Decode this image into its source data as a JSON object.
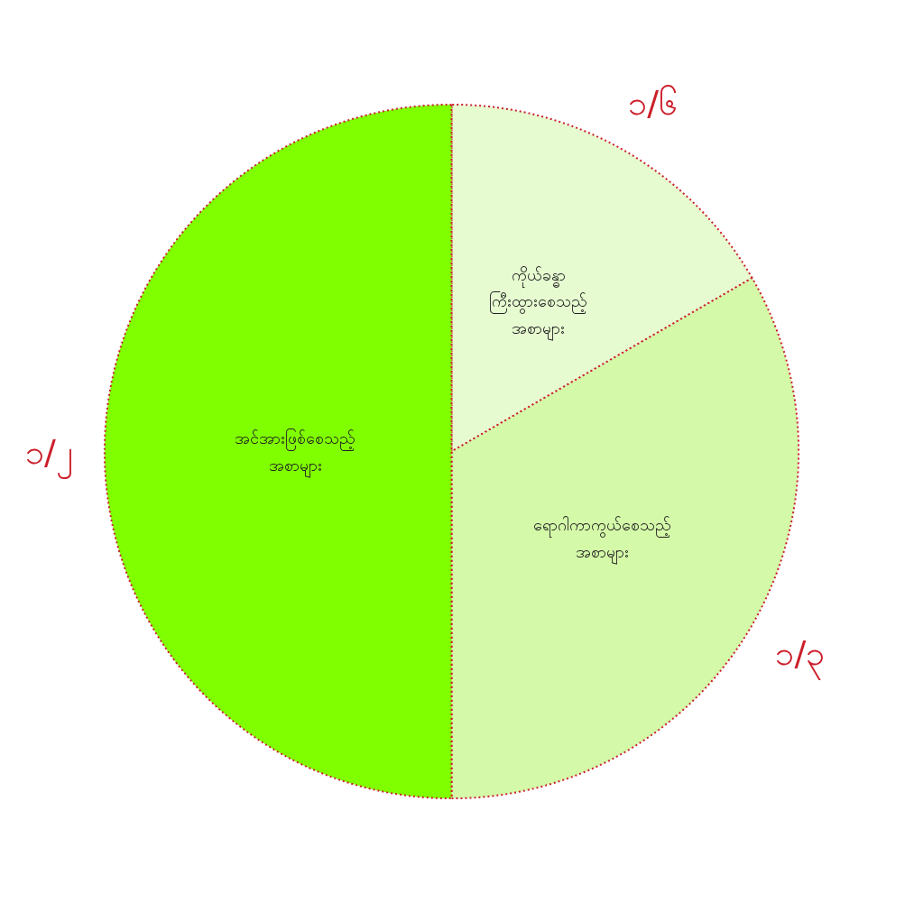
{
  "chart_data": {
    "type": "pie",
    "categories": [
      "ကိုယ်ခန္ဓာ\nကြီးထွားစေသည့်\nအစာများ",
      "ရောဂါကာကွယ်စေသည့်\nအစာများ",
      "အင်အားဖြစ်စေသည့်\nအစာများ"
    ],
    "values": [
      0.16667,
      0.33333,
      0.5
    ],
    "colors": [
      "#e6fbd0",
      "#d4f9a8",
      "#80ff00"
    ],
    "value_labels": [
      "၁/၆",
      "၁/၃",
      "၁/၂"
    ]
  }
}
